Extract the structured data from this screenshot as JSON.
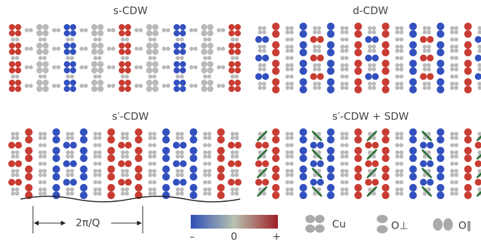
{
  "panels": [
    {
      "title": "s-CDW"
    },
    {
      "title": "d-CDW"
    },
    {
      "title": "s′-CDW"
    },
    {
      "title": "s′-CDW + SDW"
    }
  ],
  "wavelength_label": "2π/Q",
  "colorbar": {
    "labels": [
      "–",
      "0",
      "+"
    ]
  },
  "legend": [
    {
      "label": "Cu"
    },
    {
      "label": "O⊥"
    },
    {
      "label": "O∥"
    }
  ]
}
